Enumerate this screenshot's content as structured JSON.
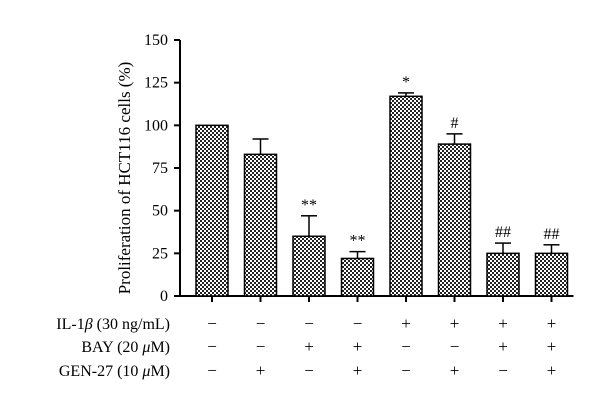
{
  "chart_data": {
    "type": "bar",
    "title": "",
    "xlabel": "",
    "ylabel": "Proliferation of HCT116 cells (%)",
    "ylim": [
      0,
      150
    ],
    "yticks": [
      0,
      25,
      50,
      75,
      100,
      125,
      150
    ],
    "bars": [
      {
        "value": 100,
        "error": 0,
        "sig": ""
      },
      {
        "value": 83,
        "error": 9,
        "sig": ""
      },
      {
        "value": 35,
        "error": 12,
        "sig": "**"
      },
      {
        "value": 22,
        "error": 4,
        "sig": "**"
      },
      {
        "value": 117,
        "error": 2,
        "sig": "*"
      },
      {
        "value": 89,
        "error": 6,
        "sig": "#"
      },
      {
        "value": 25,
        "error": 6,
        "sig": "##"
      },
      {
        "value": 25,
        "error": 5,
        "sig": "##"
      }
    ],
    "conditions": [
      {
        "label_main": "IL-1",
        "label_greek": "β",
        "label_rest": " (30 ng/mL)",
        "marks": [
          "−",
          "−",
          "−",
          "−",
          "+",
          "+",
          "+",
          "+"
        ]
      },
      {
        "label_main": "BAY (20 ",
        "label_greek": "μ",
        "label_rest": "M)",
        "marks": [
          "−",
          "−",
          "+",
          "+",
          "−",
          "−",
          "+",
          "+"
        ]
      },
      {
        "label_main": "GEN-27 (10 ",
        "label_greek": "μ",
        "label_rest": "M)",
        "marks": [
          "−",
          "+",
          "−",
          "+",
          "−",
          "+",
          "−",
          "+"
        ]
      }
    ],
    "colors": {
      "bar_fill_dark": "#222222",
      "bar_fill_light": "#ffffff",
      "axis": "#000000"
    },
    "grid": false,
    "legend": "none"
  }
}
